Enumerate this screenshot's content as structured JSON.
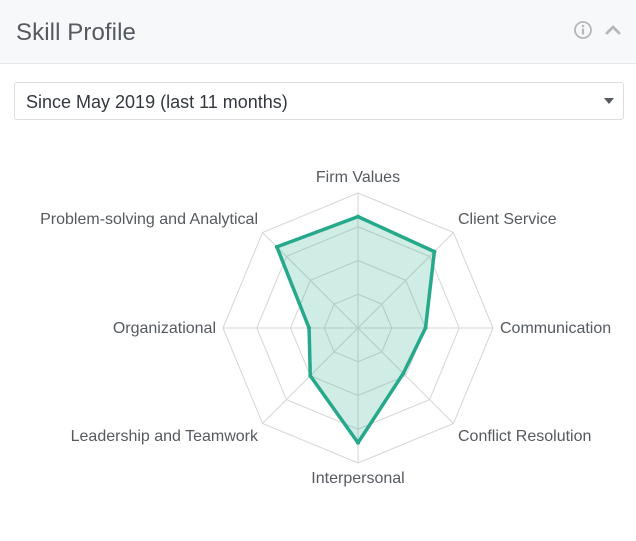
{
  "header": {
    "title": "Skill Profile",
    "info_icon": "info-circle-icon",
    "collapse_icon": "chevron-up-icon"
  },
  "filter": {
    "selected": "Since May 2019 (last 11 months)"
  },
  "colors": {
    "accent": "#26a98a",
    "accent_fill": "rgba(38,169,138,0.22)",
    "grid": "#d6d6d6"
  },
  "chart_data": {
    "type": "radar",
    "axes": [
      "Firm Values",
      "Client Service",
      "Communication",
      "Conflict Resolution",
      "Interpersonal",
      "Leadership and Teamwork",
      "Organizational",
      "Problem-solving and Analytical"
    ],
    "levels": 4,
    "max": 4,
    "series": [
      {
        "values": [
          3.3,
          3.2,
          2.0,
          1.9,
          3.4,
          2.0,
          1.45,
          3.4
        ]
      }
    ],
    "grid": true,
    "legend": "none"
  }
}
